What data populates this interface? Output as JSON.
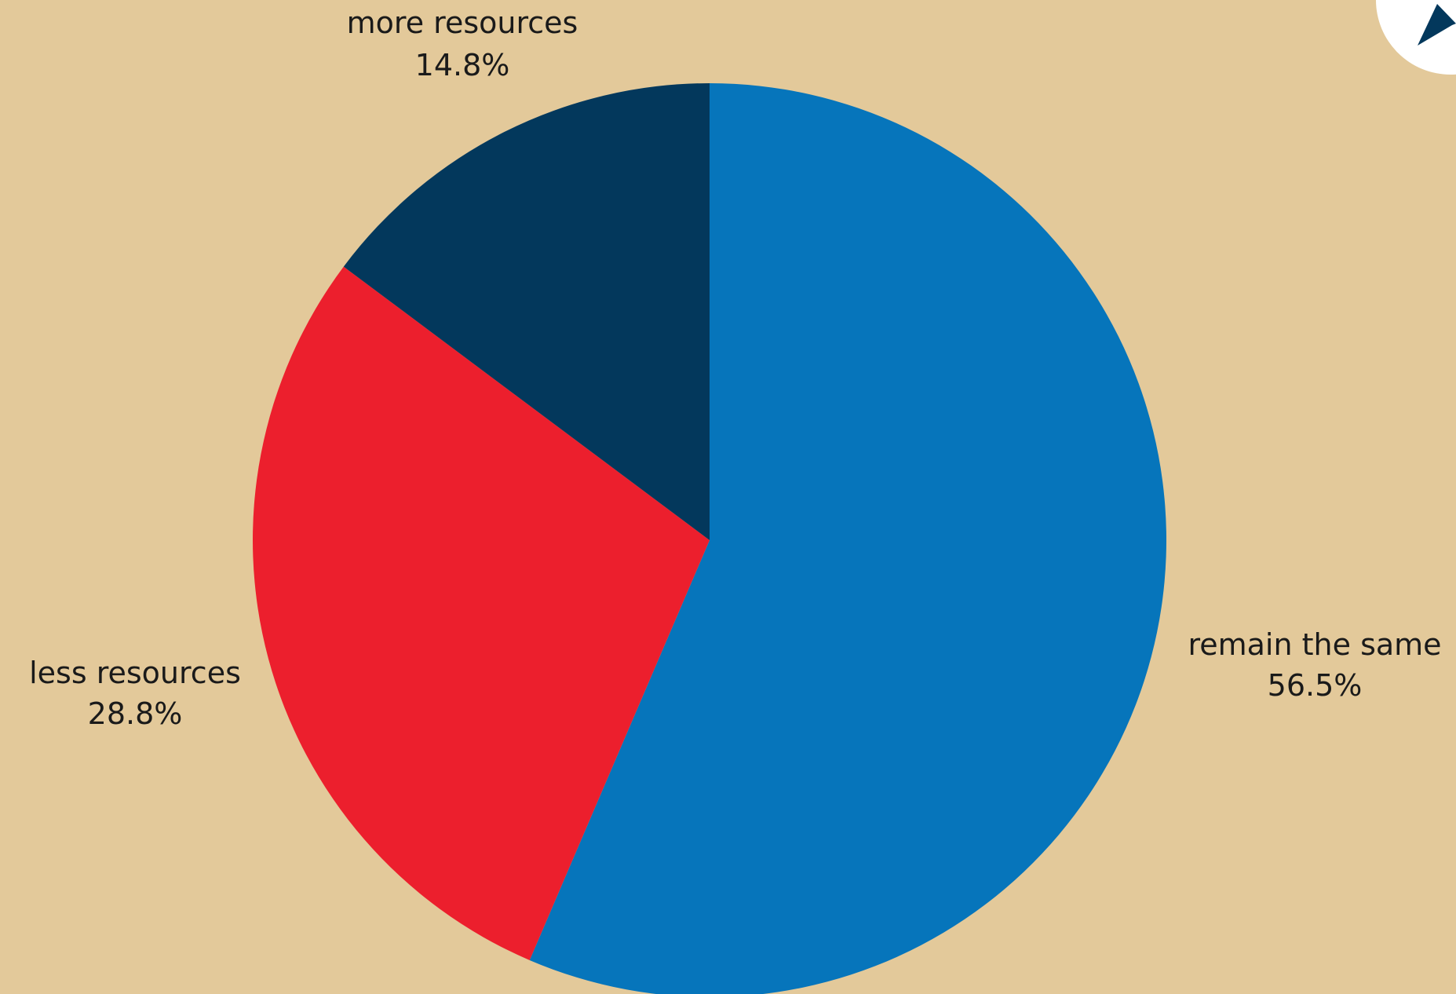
{
  "chart_data": {
    "type": "pie",
    "title": "",
    "slices": [
      {
        "label": "remain the same",
        "value": 56.5,
        "value_label": "56.5%",
        "color": "#0675bb"
      },
      {
        "label": "less resources",
        "value": 28.8,
        "value_label": "28.8%",
        "color": "#ec1f2d"
      },
      {
        "label": "more resources",
        "value": 14.8,
        "value_label": "14.8%",
        "color": "#03385c"
      }
    ],
    "start_position": "top, clockwise",
    "background_color": "#e3c99a",
    "logo": {
      "icon": "star-badge-icon",
      "fill": "#ffffff",
      "star_color": "#03385c"
    }
  }
}
